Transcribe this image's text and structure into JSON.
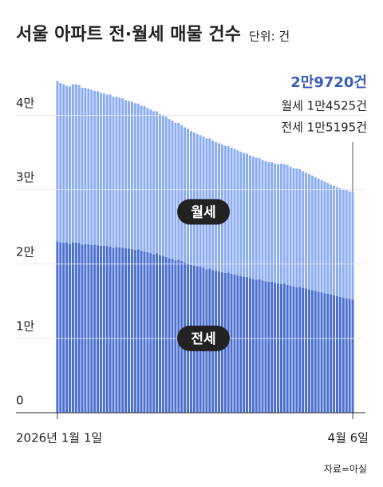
{
  "chart_data": {
    "type": "stacked-bar",
    "title": "서울 아파트 전·월세 매물 건수",
    "subtitle": "단위: 건",
    "source": "자료=아실",
    "annotations": [
      "2만9720건",
      "월세 1만4525건",
      "전세 1만5195건"
    ],
    "categories": [
      "2026년 1월 1일",
      null,
      null,
      null,
      null,
      null,
      null,
      null,
      null,
      null,
      null,
      null,
      null,
      null,
      null,
      null,
      null,
      null,
      null,
      null,
      null,
      null,
      null,
      null,
      null,
      null,
      null,
      null,
      null,
      null,
      null,
      null,
      null,
      null,
      null,
      null,
      null,
      null,
      null,
      null,
      null,
      null,
      null,
      null,
      null,
      null,
      null,
      null,
      null,
      null,
      null,
      null,
      null,
      null,
      null,
      null,
      null,
      null,
      null,
      null,
      null,
      null,
      null,
      null,
      null,
      null,
      null,
      null,
      null,
      null,
      null,
      null,
      null,
      null,
      null,
      null,
      null,
      null,
      null,
      null,
      null,
      null,
      null,
      null,
      null,
      null,
      null,
      null,
      null,
      null,
      null,
      null,
      null,
      null,
      null,
      "4월 6일"
    ],
    "series": [
      {
        "name": "전세",
        "color": "#4a6fcf",
        "values": [
          23050,
          22950,
          22900,
          22880,
          22700,
          22950,
          22900,
          22850,
          22600,
          22700,
          22650,
          22550,
          22600,
          22500,
          22450,
          22480,
          22400,
          22350,
          22200,
          22300,
          22250,
          22200,
          22150,
          22100,
          22050,
          21900,
          22000,
          21800,
          21700,
          21600,
          21500,
          21300,
          21450,
          21200,
          21100,
          20950,
          20800,
          20700,
          20500,
          20600,
          20400,
          20200,
          20100,
          19900,
          19800,
          19700,
          19650,
          19500,
          19300,
          19400,
          19200,
          19100,
          19000,
          18900,
          18800,
          18850,
          18700,
          18600,
          18500,
          18400,
          18300,
          18250,
          18100,
          18000,
          17900,
          17950,
          17800,
          17700,
          17600,
          17650,
          17500,
          17400,
          17300,
          17350,
          17200,
          17100,
          17000,
          16900,
          16950,
          16800,
          16700,
          16600,
          16500,
          16400,
          16300,
          16200,
          16100,
          16000,
          15900,
          15800,
          15700,
          15600,
          15500,
          15400,
          15300,
          15195
        ]
      },
      {
        "name": "월세",
        "color": "#8cadf0",
        "values": [
          21600,
          21400,
          21300,
          21100,
          21200,
          21250,
          21300,
          21250,
          21100,
          21000,
          20950,
          20900,
          20700,
          20750,
          20600,
          20500,
          20400,
          20450,
          20300,
          20200,
          20150,
          20100,
          19900,
          19850,
          19800,
          19750,
          19600,
          19500,
          19550,
          19400,
          19300,
          19250,
          19100,
          19000,
          18950,
          18900,
          18700,
          18600,
          18500,
          18400,
          18300,
          18200,
          18100,
          18000,
          17900,
          17800,
          17700,
          17650,
          17600,
          17500,
          17400,
          17300,
          17250,
          17200,
          17100,
          17000,
          16950,
          16900,
          16800,
          16700,
          16650,
          16600,
          16500,
          16450,
          16400,
          16300,
          16200,
          16150,
          16100,
          16050,
          16000,
          16050,
          16200,
          16100,
          16150,
          16000,
          15900,
          15950,
          15800,
          15700,
          15600,
          15500,
          15400,
          15300,
          15200,
          15100,
          15000,
          14900,
          14800,
          14700,
          14650,
          14600,
          14550,
          14600,
          14500,
          14525
        ]
      }
    ],
    "ylim": [
      0,
      45000
    ],
    "yticks": [
      0,
      {
        "value": 10000,
        "label": "1만"
      },
      {
        "value": 20000,
        "label": "2만"
      },
      {
        "value": 30000,
        "label": "3만"
      },
      {
        "value": 40000,
        "label": "4만"
      }
    ],
    "grid": true
  }
}
